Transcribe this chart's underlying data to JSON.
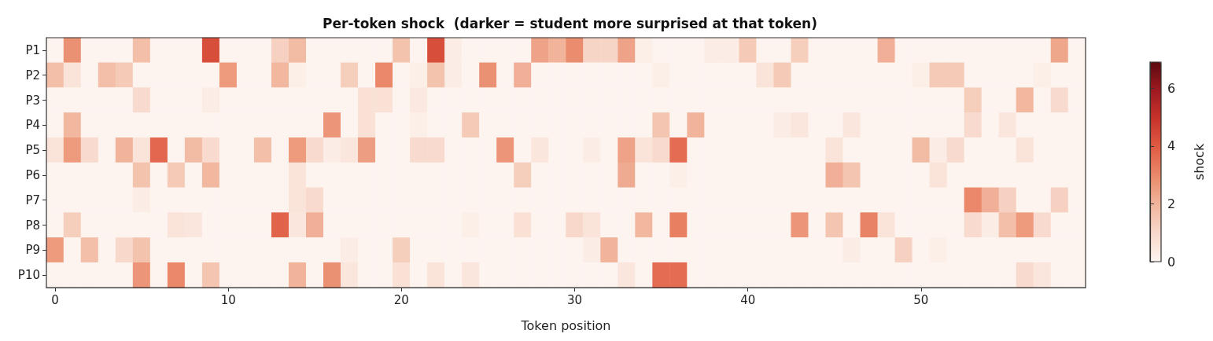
{
  "chart_data": {
    "type": "heatmap",
    "title": "Per-token shock  (darker = student more surprised at that token)",
    "xlabel": "Token position",
    "clabel": "shock",
    "categories": [
      "0",
      null,
      null,
      null,
      null,
      null,
      null,
      null,
      null,
      null,
      "10",
      null,
      null,
      null,
      null,
      null,
      null,
      null,
      null,
      null,
      "20",
      null,
      null,
      null,
      null,
      null,
      null,
      null,
      null,
      null,
      "30",
      null,
      null,
      null,
      null,
      null,
      null,
      null,
      null,
      null,
      "40",
      null,
      null,
      null,
      null,
      null,
      null,
      null,
      null,
      null,
      "50",
      null,
      null,
      null,
      null,
      null,
      null,
      null,
      null,
      null
    ],
    "y_categories": [
      "P1",
      "P2",
      "P3",
      "P4",
      "P5",
      "P6",
      "P7",
      "P8",
      "P9",
      "P10"
    ],
    "cells": [
      [
        0,
        2.8,
        0,
        0,
        0,
        1.7,
        0,
        0,
        0,
        4.3,
        0,
        0,
        0,
        1.2,
        1.8,
        0,
        0,
        0,
        0,
        0,
        1.6,
        0,
        4.3,
        0.3,
        0,
        0,
        0,
        0,
        2.4,
        2,
        2.9,
        1.1,
        1.1,
        2.4,
        0.2,
        0,
        0,
        0,
        0.3,
        0.3,
        1.4,
        0,
        0,
        1.3,
        0,
        0,
        0,
        0,
        2.1,
        0,
        0,
        0,
        0,
        0,
        0,
        0,
        0,
        0,
        2.3,
        0
      ],
      [
        1.7,
        0.6,
        0,
        1.7,
        1.4,
        0,
        0,
        0,
        0,
        0,
        2.6,
        0,
        0,
        1.9,
        0.2,
        0,
        0,
        1.3,
        0,
        3,
        0,
        0.2,
        1.6,
        0.3,
        0,
        2.8,
        0,
        2.1,
        0,
        0,
        0,
        0,
        0,
        0,
        0,
        0.2,
        0,
        0,
        0,
        0,
        0,
        0.6,
        1.4,
        0,
        0,
        0,
        0,
        0,
        0,
        0,
        0.2,
        1.4,
        1.4,
        0,
        0,
        0,
        0,
        0.2,
        0,
        0
      ],
      [
        0,
        0,
        0,
        0,
        0,
        0.9,
        0,
        0,
        0,
        0.3,
        0,
        0,
        0,
        0,
        0,
        0,
        0,
        0,
        0.7,
        0.7,
        0,
        0.4,
        0,
        0,
        0,
        0,
        0,
        0,
        0,
        0,
        0,
        0,
        0,
        0,
        0,
        0,
        0,
        0,
        0,
        0,
        0,
        0,
        0,
        0,
        0,
        0,
        0,
        0,
        0,
        0,
        0,
        0,
        0,
        1.3,
        0,
        0,
        1.9,
        0,
        0.9,
        0
      ],
      [
        0,
        1.9,
        0,
        0,
        0,
        0,
        0,
        0,
        0,
        0,
        0,
        0,
        0,
        0,
        0,
        0,
        2.7,
        0,
        0.7,
        0,
        0,
        0.2,
        0,
        0,
        1.4,
        0,
        0,
        0,
        0,
        0,
        0,
        0,
        0,
        0,
        0,
        1.5,
        0,
        2,
        0,
        0,
        0,
        0,
        0.3,
        0.5,
        0,
        0,
        0.5,
        0,
        0,
        0,
        0,
        0,
        0,
        0.9,
        0,
        0.5,
        0,
        0,
        0,
        0
      ],
      [
        0.6,
        2.6,
        0.9,
        0,
        2,
        0.6,
        3.7,
        0,
        1.8,
        0.9,
        0,
        0,
        1.7,
        0,
        2.6,
        0.9,
        0.3,
        0.5,
        2.5,
        0,
        0,
        0.9,
        0.9,
        0,
        0,
        0,
        2.7,
        0,
        0.5,
        0,
        0,
        0.3,
        0,
        2.4,
        0.6,
        0.9,
        3.6,
        0,
        0,
        0,
        0,
        0,
        0,
        0,
        0,
        0.6,
        0,
        0,
        0,
        0,
        1.8,
        0.3,
        0.9,
        0,
        0,
        0,
        0.6,
        0,
        0,
        0
      ],
      [
        0,
        0,
        0,
        0,
        0,
        1.6,
        0,
        1.4,
        0,
        1.9,
        0,
        0,
        0,
        0,
        0.6,
        0,
        0,
        0,
        0,
        0,
        0,
        0,
        0,
        0,
        0,
        0,
        0,
        1.3,
        0,
        0,
        0,
        0,
        0,
        2.2,
        0,
        0,
        0.2,
        0,
        0,
        0,
        0,
        0,
        0,
        0,
        0,
        2.1,
        1.5,
        0,
        0,
        0,
        0,
        0.6,
        0,
        0,
        0,
        0,
        0,
        0,
        0,
        0
      ],
      [
        0,
        0,
        0,
        0,
        0,
        0.3,
        0,
        0,
        0,
        0,
        0,
        0,
        0,
        0,
        0.6,
        0.9,
        0,
        0,
        0,
        0,
        0,
        0,
        0,
        0,
        0,
        0,
        0,
        0,
        0,
        0,
        0,
        0,
        0,
        0,
        0,
        0,
        0,
        0,
        0,
        0,
        0,
        0,
        0,
        0,
        0,
        0,
        0,
        0,
        0,
        0,
        0,
        0,
        0,
        3,
        2.1,
        1.2,
        0,
        0,
        1.2,
        0
      ],
      [
        0,
        1.3,
        0,
        0,
        0,
        0,
        0,
        0.6,
        0.5,
        0,
        0,
        0,
        0,
        3.8,
        0.5,
        2.1,
        0,
        0,
        0,
        0,
        0,
        0,
        0,
        0,
        0.2,
        0,
        0,
        0.7,
        0,
        0,
        1,
        0.6,
        0,
        0,
        1.9,
        0,
        3.2,
        0,
        0,
        0,
        0,
        0,
        0,
        2.7,
        0,
        1.5,
        0,
        3.1,
        0.6,
        0,
        0,
        0,
        0,
        0.9,
        0.3,
        1.7,
        2.6,
        0.9,
        0,
        0
      ],
      [
        2.6,
        0,
        1.7,
        0,
        1,
        1.6,
        0,
        0,
        0,
        0,
        0,
        0,
        0,
        0,
        0,
        0,
        0,
        0.3,
        0,
        0,
        1.3,
        0,
        0,
        0,
        0,
        0,
        0,
        0,
        0,
        0,
        0,
        0.3,
        2,
        0,
        0,
        0,
        0,
        0,
        0,
        0,
        0,
        0,
        0,
        0,
        0,
        0,
        0.3,
        0,
        0,
        1.2,
        0,
        0.2,
        0,
        0,
        0,
        0,
        0,
        0,
        0,
        0
      ],
      [
        0,
        0,
        0,
        0,
        0,
        2.7,
        0,
        3,
        0,
        1.5,
        0,
        0,
        0,
        0,
        2,
        0,
        2.8,
        0.5,
        0,
        0,
        0.7,
        0,
        0.6,
        0,
        0.5,
        0,
        0,
        0,
        0,
        0,
        0,
        0,
        0,
        0.5,
        0,
        3.6,
        3.6,
        0,
        0,
        0,
        0,
        0,
        0,
        0,
        0,
        0,
        0,
        0,
        0,
        0,
        0,
        0,
        0,
        0,
        0,
        0,
        0.9,
        0.5,
        0,
        0
      ]
    ],
    "clim": [
      0,
      6.9
    ],
    "cticks": [
      0,
      2,
      4,
      6
    ]
  }
}
